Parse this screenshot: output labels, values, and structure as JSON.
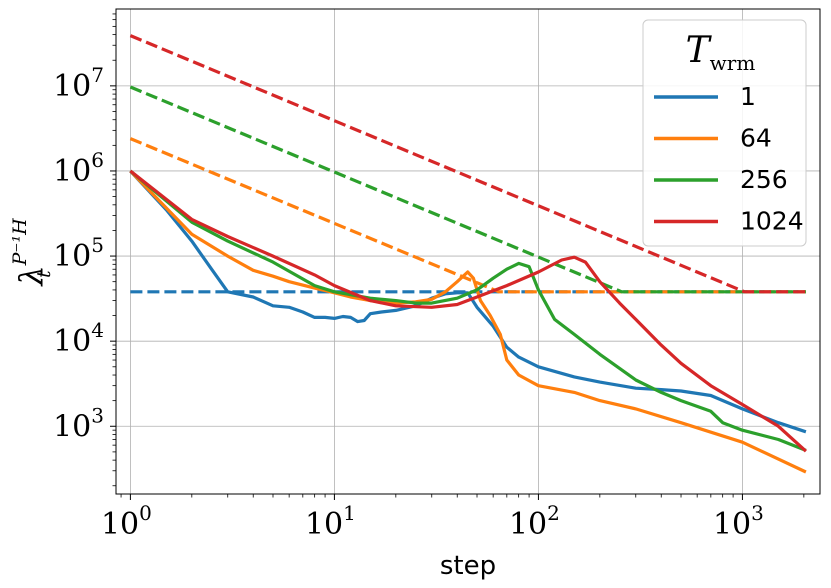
{
  "chart_data": {
    "type": "line",
    "xscale": "log",
    "yscale": "log",
    "xlim": [
      0.85,
      2400
    ],
    "ylim": [
      160,
      80000000
    ],
    "xlabel": "step",
    "ylabel": {
      "base": "λ",
      "sup": "P⁻¹H",
      "sub": "t"
    },
    "grid": true,
    "x_ticks": [
      {
        "value": 1,
        "base": "10",
        "exp": "0"
      },
      {
        "value": 10,
        "base": "10",
        "exp": "1"
      },
      {
        "value": 100,
        "base": "10",
        "exp": "2"
      },
      {
        "value": 1000,
        "base": "10",
        "exp": "3"
      }
    ],
    "y_ticks": [
      {
        "value": 1000,
        "base": "10",
        "exp": "3"
      },
      {
        "value": 10000,
        "base": "10",
        "exp": "4"
      },
      {
        "value": 100000,
        "base": "10",
        "exp": "5"
      },
      {
        "value": 1000000,
        "base": "10",
        "exp": "6"
      },
      {
        "value": 10000000,
        "base": "10",
        "exp": "7"
      }
    ],
    "legend": {
      "position": "top-right",
      "title": {
        "base": "T",
        "sub": "wrm"
      },
      "entries": [
        {
          "label": "1",
          "color": "#1f77b4"
        },
        {
          "label": "64",
          "color": "#ff7f0e"
        },
        {
          "label": "256",
          "color": "#2ca02c"
        },
        {
          "label": "1024",
          "color": "#d62728"
        }
      ]
    },
    "series": [
      {
        "warmup": "1",
        "color": "#1f77b4",
        "style": "solid",
        "points": [
          [
            1,
            1000000
          ],
          [
            1.5,
            350000
          ],
          [
            2,
            150000
          ],
          [
            2.5,
            70000
          ],
          [
            3,
            38000
          ],
          [
            4,
            33000
          ],
          [
            5,
            26000
          ],
          [
            6,
            25000
          ],
          [
            7,
            22000
          ],
          [
            8,
            19000
          ],
          [
            9,
            19000
          ],
          [
            10,
            18500
          ],
          [
            11,
            19500
          ],
          [
            12,
            19000
          ],
          [
            13,
            17000
          ],
          [
            14,
            17500
          ],
          [
            15,
            21000
          ],
          [
            17,
            22000
          ],
          [
            20,
            23000
          ],
          [
            25,
            26000
          ],
          [
            30,
            32000
          ],
          [
            35,
            36000
          ],
          [
            40,
            37000
          ],
          [
            45,
            37000
          ],
          [
            50,
            25000
          ],
          [
            60,
            15000
          ],
          [
            70,
            8500
          ],
          [
            80,
            6500
          ],
          [
            100,
            5000
          ],
          [
            150,
            3800
          ],
          [
            200,
            3300
          ],
          [
            300,
            2800
          ],
          [
            400,
            2700
          ],
          [
            500,
            2600
          ],
          [
            700,
            2300
          ],
          [
            1000,
            1600
          ],
          [
            1500,
            1100
          ],
          [
            2048,
            860
          ]
        ]
      },
      {
        "warmup": "1",
        "color": "#1f77b4",
        "style": "dashed",
        "points": [
          [
            1,
            38000
          ],
          [
            2048,
            38000
          ]
        ]
      },
      {
        "warmup": "64",
        "color": "#ff7f0e",
        "style": "solid",
        "points": [
          [
            1,
            1000000
          ],
          [
            2,
            180000
          ],
          [
            3,
            100000
          ],
          [
            4,
            68000
          ],
          [
            5,
            58000
          ],
          [
            6,
            50000
          ],
          [
            8,
            42000
          ],
          [
            10,
            37000
          ],
          [
            12,
            33000
          ],
          [
            15,
            30000
          ],
          [
            20,
            28000
          ],
          [
            25,
            29000
          ],
          [
            30,
            31000
          ],
          [
            35,
            38000
          ],
          [
            40,
            50000
          ],
          [
            45,
            65000
          ],
          [
            48,
            55000
          ],
          [
            52,
            30000
          ],
          [
            58,
            20000
          ],
          [
            65,
            12000
          ],
          [
            70,
            6000
          ],
          [
            80,
            4000
          ],
          [
            100,
            3000
          ],
          [
            150,
            2500
          ],
          [
            200,
            2000
          ],
          [
            300,
            1600
          ],
          [
            500,
            1100
          ],
          [
            1000,
            650
          ],
          [
            2048,
            290
          ]
        ]
      },
      {
        "warmup": "64",
        "color": "#ff7f0e",
        "style": "dashed",
        "points": [
          [
            1,
            2400000
          ],
          [
            64,
            38000
          ],
          [
            2048,
            38000
          ]
        ]
      },
      {
        "warmup": "256",
        "color": "#2ca02c",
        "style": "solid",
        "points": [
          [
            1,
            1000000
          ],
          [
            2,
            250000
          ],
          [
            3,
            150000
          ],
          [
            5,
            85000
          ],
          [
            8,
            45000
          ],
          [
            10,
            38000
          ],
          [
            15,
            32000
          ],
          [
            20,
            30000
          ],
          [
            25,
            28000
          ],
          [
            30,
            28000
          ],
          [
            40,
            32000
          ],
          [
            50,
            40000
          ],
          [
            60,
            55000
          ],
          [
            70,
            70000
          ],
          [
            80,
            82000
          ],
          [
            90,
            75000
          ],
          [
            100,
            40000
          ],
          [
            120,
            18000
          ],
          [
            150,
            12000
          ],
          [
            200,
            7000
          ],
          [
            300,
            3500
          ],
          [
            400,
            2500
          ],
          [
            500,
            2000
          ],
          [
            700,
            1500
          ],
          [
            800,
            1100
          ],
          [
            1000,
            900
          ],
          [
            1500,
            700
          ],
          [
            2048,
            520
          ]
        ]
      },
      {
        "warmup": "256",
        "color": "#2ca02c",
        "style": "dashed",
        "points": [
          [
            1,
            9700000
          ],
          [
            256,
            38000
          ],
          [
            2048,
            38000
          ]
        ]
      },
      {
        "warmup": "1024",
        "color": "#d62728",
        "style": "solid",
        "points": [
          [
            1,
            1000000
          ],
          [
            2,
            270000
          ],
          [
            3,
            170000
          ],
          [
            5,
            100000
          ],
          [
            8,
            60000
          ],
          [
            10,
            45000
          ],
          [
            15,
            30000
          ],
          [
            20,
            26000
          ],
          [
            30,
            25000
          ],
          [
            40,
            27000
          ],
          [
            50,
            33000
          ],
          [
            70,
            45000
          ],
          [
            100,
            65000
          ],
          [
            130,
            90000
          ],
          [
            150,
            97000
          ],
          [
            170,
            85000
          ],
          [
            200,
            50000
          ],
          [
            250,
            28000
          ],
          [
            300,
            18000
          ],
          [
            400,
            9000
          ],
          [
            500,
            5500
          ],
          [
            700,
            3000
          ],
          [
            1000,
            1800
          ],
          [
            1500,
            1000
          ],
          [
            2048,
            510
          ]
        ]
      },
      {
        "warmup": "1024",
        "color": "#d62728",
        "style": "dashed",
        "points": [
          [
            1,
            39000000
          ],
          [
            1024,
            38000
          ],
          [
            2048,
            38000
          ]
        ]
      }
    ]
  }
}
